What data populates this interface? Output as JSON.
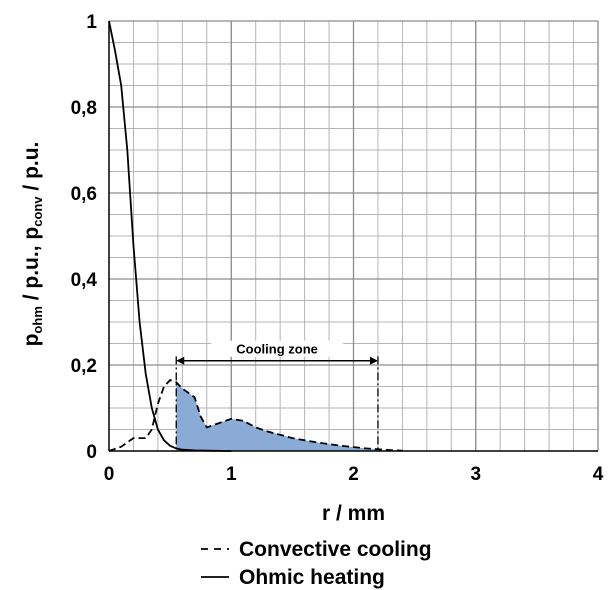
{
  "chart_data": {
    "type": "line",
    "xlabel": "r / mm",
    "ylabel_parts": [
      {
        "text": "p",
        "sub": false
      },
      {
        "text": "ohm",
        "sub": true
      },
      {
        "text": " / p.u., p",
        "sub": false
      },
      {
        "text": "conv",
        "sub": true
      },
      {
        "text": " / p.u.",
        "sub": false
      }
    ],
    "xlim": [
      0,
      4
    ],
    "ylim": [
      0,
      1
    ],
    "x_ticks": [
      0,
      1,
      2,
      3,
      4
    ],
    "x_tick_labels": [
      "0",
      "1",
      "2",
      "3",
      "4"
    ],
    "y_ticks": [
      0,
      0.2,
      0.4,
      0.6,
      0.8,
      1
    ],
    "y_tick_labels": [
      "0",
      "0,2",
      "0,4",
      "0,6",
      "0,8",
      "1"
    ],
    "minor_x_step": 0.2,
    "minor_y_step": 0.05,
    "grid": true,
    "series": [
      {
        "name": "Convective cooling",
        "style": "dashed",
        "color": "#000000",
        "x": [
          0,
          0.1,
          0.2,
          0.3,
          0.35,
          0.4,
          0.45,
          0.5,
          0.55,
          0.6,
          0.65,
          0.7,
          0.75,
          0.8,
          0.9,
          1.0,
          1.1,
          1.2,
          1.3,
          1.4,
          1.5,
          1.6,
          1.7,
          1.8,
          1.9,
          2.0,
          2.1,
          2.2,
          2.3,
          2.4
        ],
        "y": [
          0.0,
          0.01,
          0.03,
          0.03,
          0.05,
          0.11,
          0.15,
          0.165,
          0.16,
          0.145,
          0.135,
          0.125,
          0.08,
          0.055,
          0.065,
          0.075,
          0.07,
          0.055,
          0.045,
          0.038,
          0.03,
          0.025,
          0.02,
          0.016,
          0.012,
          0.009,
          0.006,
          0.004,
          0.002,
          0.001
        ]
      },
      {
        "name": "Ohmic heating",
        "style": "solid",
        "color": "#000000",
        "x": [
          0,
          0.05,
          0.1,
          0.15,
          0.2,
          0.25,
          0.3,
          0.35,
          0.4,
          0.45,
          0.5,
          0.55,
          0.6,
          0.7,
          0.8,
          1.0
        ],
        "y": [
          1.0,
          0.93,
          0.85,
          0.7,
          0.48,
          0.3,
          0.18,
          0.1,
          0.05,
          0.025,
          0.012,
          0.006,
          0.003,
          0.0015,
          0.0008,
          0.0
        ]
      }
    ],
    "shaded_region": {
      "color": "#8aabd6",
      "x_start": 0.55,
      "x_end": 2.2,
      "bound_by_series": "Convective cooling"
    },
    "annotation": {
      "text": "Cooling zone",
      "x_start": 0.55,
      "x_end": 2.2,
      "y_arrow": 0.21,
      "y_top": 0.22
    },
    "legend": {
      "placement": "bottom-center",
      "entries": [
        {
          "label": "Convective cooling",
          "style": "dashed"
        },
        {
          "label": "Ohmic heating",
          "style": "solid"
        }
      ]
    }
  }
}
